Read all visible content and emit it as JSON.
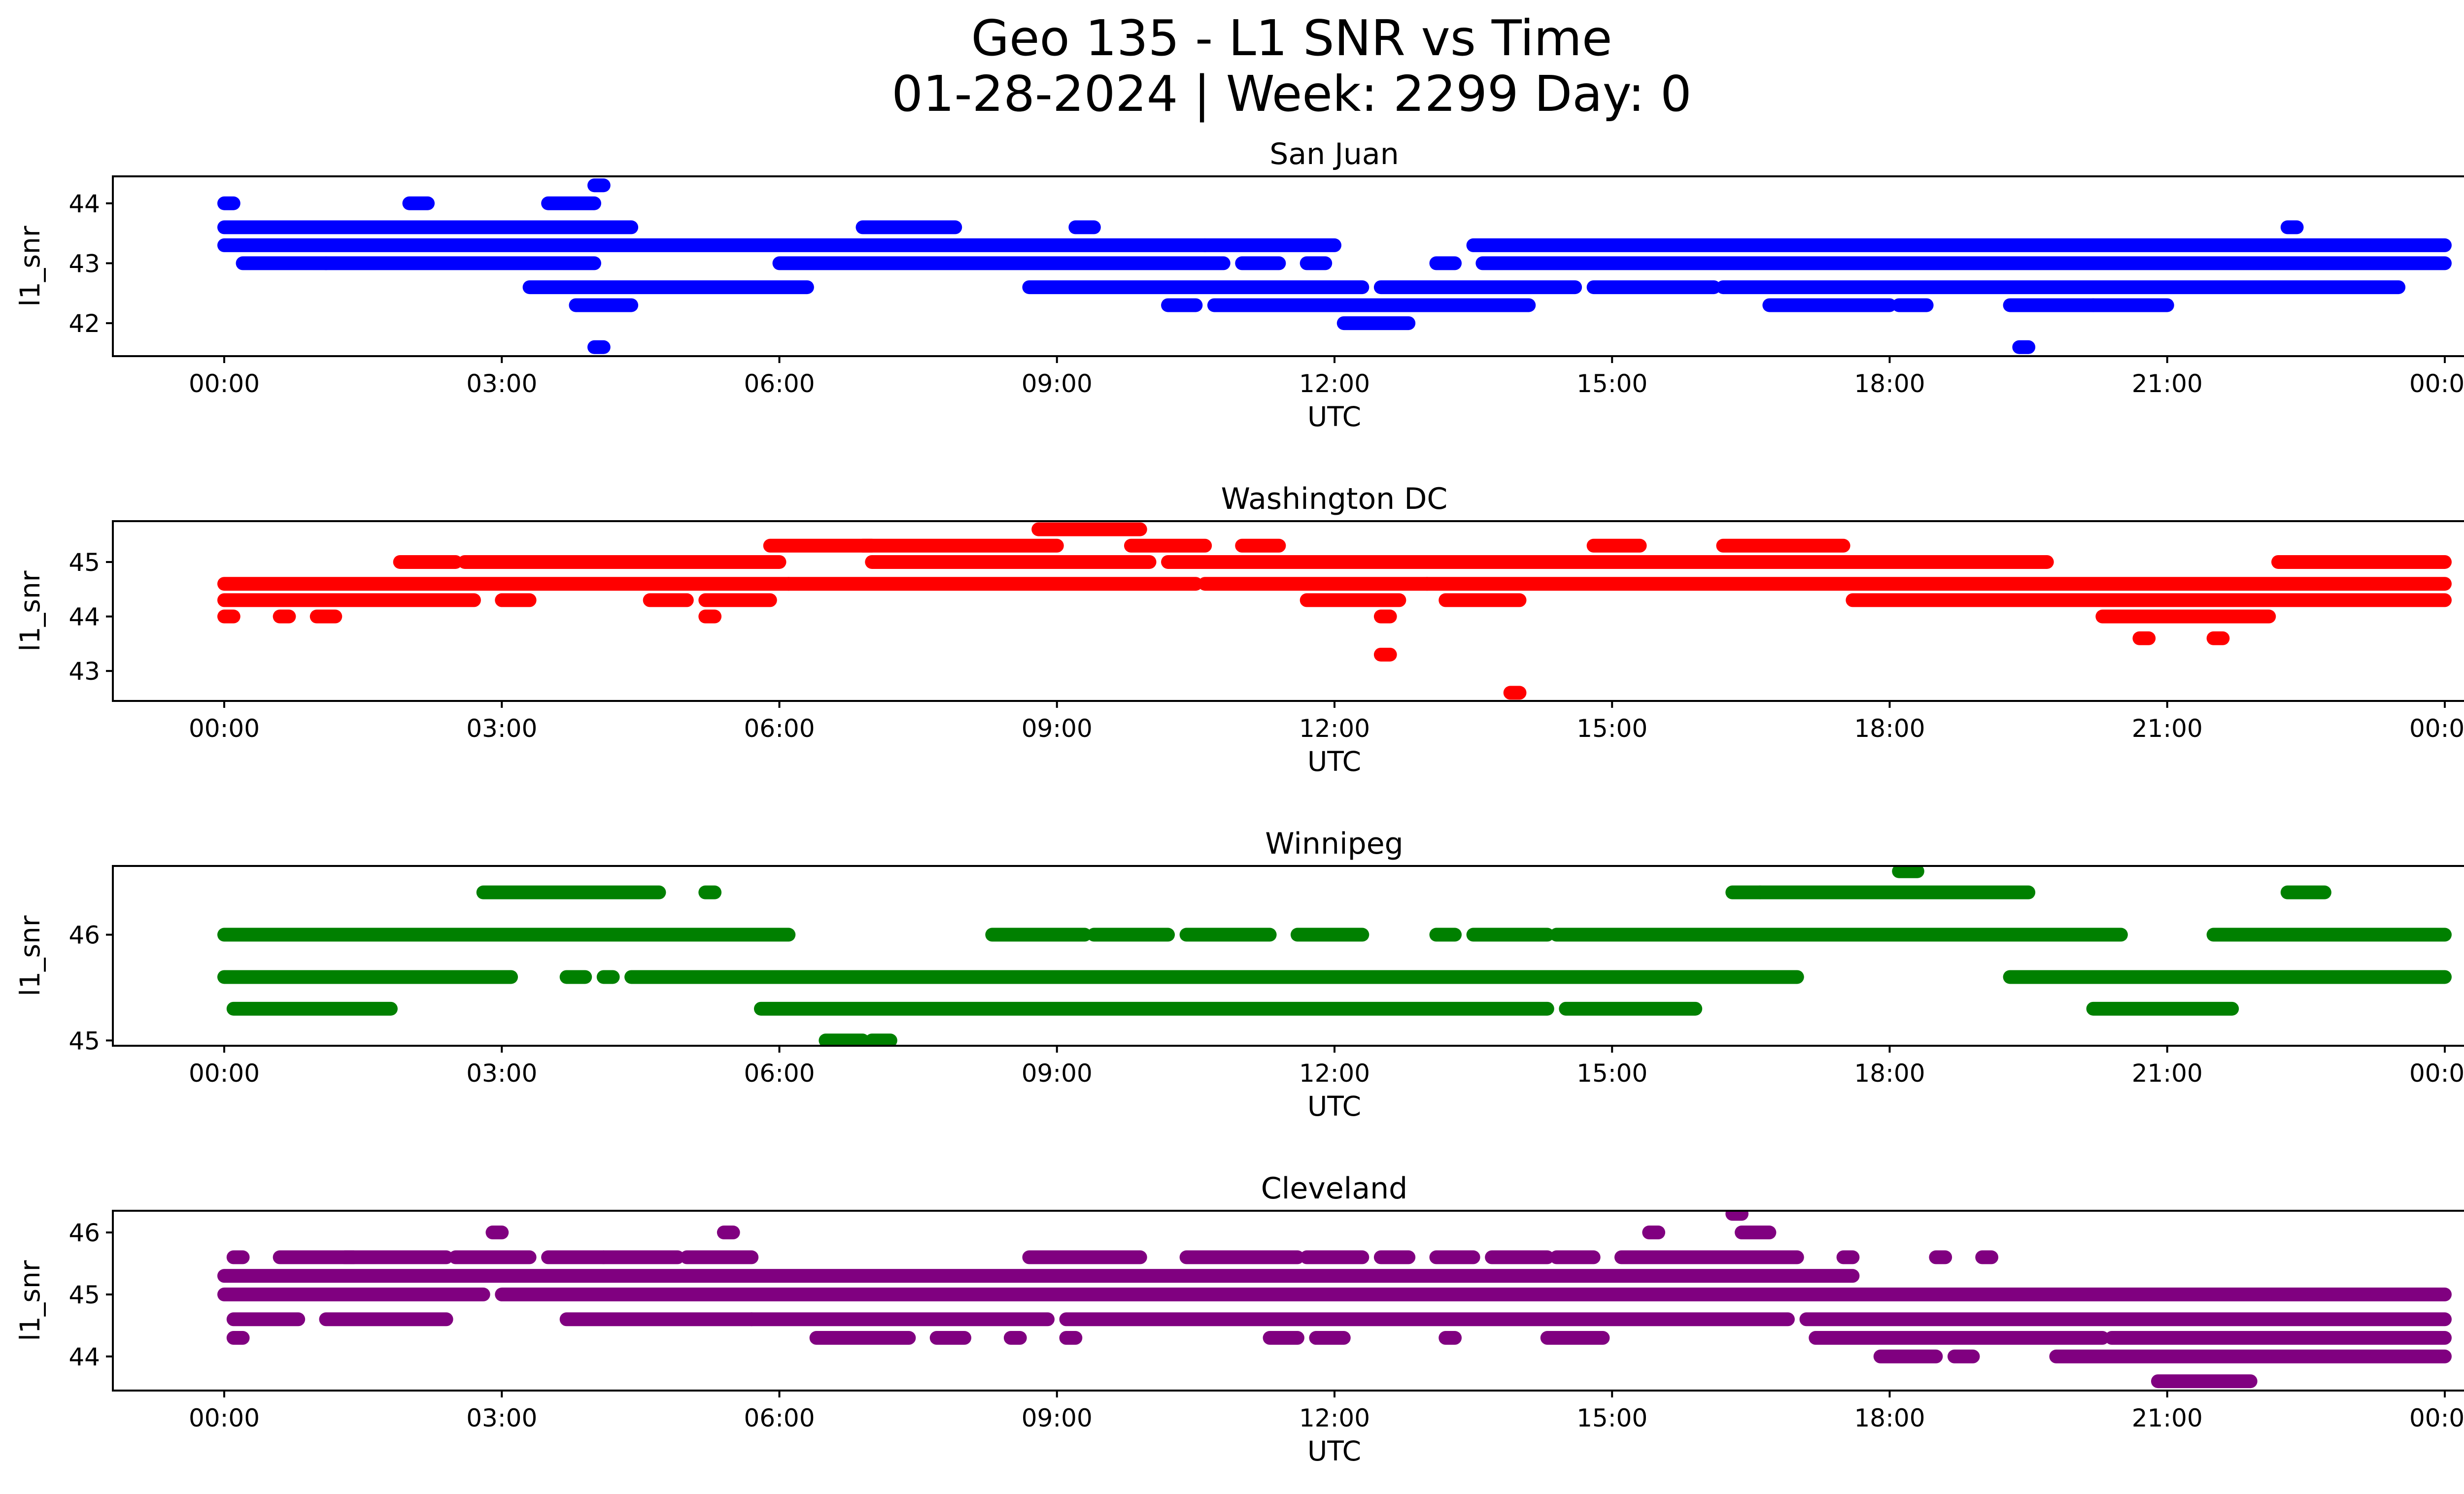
{
  "title_line1": "Geo 135 - L1 SNR vs Time",
  "title_line2": "01-28-2024 | Week: 2299 Day: 0",
  "chart_data": [
    {
      "type": "scatter",
      "title": "San Juan",
      "xlabel": "UTC",
      "ylabel": "l1_snr",
      "color": "#0000ff",
      "xlim": [
        0,
        24
      ],
      "ylim": [
        41.45,
        44.45
      ],
      "yticks": [
        42,
        43,
        44
      ],
      "xticks": [
        "00:00",
        "03:00",
        "06:00",
        "09:00",
        "12:00",
        "15:00",
        "18:00",
        "21:00",
        "00:00"
      ],
      "series": [
        {
          "values": [
            {
              "y": 43.3,
              "x": [
                [
                  0,
                  10.6
                ],
                [
                  10.6,
                  12.0
                ],
                [
                  13.5,
                  24
                ]
              ]
            },
            {
              "y": 43.6,
              "x": [
                [
                  0,
                  4.4
                ],
                [
                  6.9,
                  7.9
                ],
                [
                  9.2,
                  9.4
                ],
                [
                  22.3,
                  22.4
                ]
              ]
            },
            {
              "y": 43.0,
              "x": [
                [
                  0.2,
                  1.1
                ],
                [
                  1.1,
                  4.0
                ],
                [
                  6.0,
                  10.8
                ],
                [
                  11.0,
                  11.4
                ],
                [
                  11.7,
                  11.9
                ],
                [
                  13.1,
                  13.3
                ],
                [
                  13.6,
                  24
                ]
              ]
            },
            {
              "y": 42.6,
              "x": [
                [
                  3.3,
                  6.3
                ],
                [
                  8.7,
                  12.3
                ],
                [
                  12.5,
                  14.6
                ],
                [
                  14.8,
                  16.1
                ],
                [
                  16.2,
                  23.5
                ]
              ]
            },
            {
              "y": 42.3,
              "x": [
                [
                  3.8,
                  4.4
                ],
                [
                  10.2,
                  10.5
                ],
                [
                  10.7,
                  14.1
                ],
                [
                  16.7,
                  18.0
                ],
                [
                  18.1,
                  18.4
                ],
                [
                  19.3,
                  20.2
                ],
                [
                  20.2,
                  21.0
                ]
              ]
            },
            {
              "y": 42.0,
              "x": [
                [
                  12.1,
                  12.8
                ]
              ]
            },
            {
              "y": 44.0,
              "x": [
                [
                  0,
                  0.1
                ],
                [
                  2.0,
                  2.2
                ],
                [
                  3.5,
                  4.0
                ]
              ]
            },
            {
              "y": 44.3,
              "x": [
                [
                  4.0,
                  4.1
                ]
              ]
            },
            {
              "y": 41.6,
              "x": [
                [
                  4.0,
                  4.1
                ],
                [
                  19.4,
                  19.5
                ]
              ]
            }
          ]
        }
      ]
    },
    {
      "type": "scatter",
      "title": "Washington DC",
      "xlabel": "UTC",
      "ylabel": "l1_snr",
      "color": "#ff0000",
      "xlim": [
        0,
        24
      ],
      "ylim": [
        42.45,
        45.75
      ],
      "yticks": [
        43,
        44,
        45
      ],
      "xticks": [
        "00:00",
        "03:00",
        "06:00",
        "09:00",
        "12:00",
        "15:00",
        "18:00",
        "21:00",
        "00:00"
      ],
      "series": [
        {
          "values": [
            {
              "y": 44.6,
              "x": [
                [
                  0,
                  6.1
                ],
                [
                  6.1,
                  10.5
                ],
                [
                  10.6,
                  13.0
                ],
                [
                  13.0,
                  24
                ]
              ]
            },
            {
              "y": 44.3,
              "x": [
                [
                  0,
                  2.7
                ],
                [
                  3.0,
                  3.3
                ],
                [
                  4.6,
                  5.0
                ],
                [
                  5.2,
                  5.9
                ],
                [
                  11.7,
                  12.7
                ],
                [
                  13.2,
                  14.0
                ],
                [
                  17.6,
                  24
                ]
              ]
            },
            {
              "y": 45.0,
              "x": [
                [
                  1.9,
                  2.5
                ],
                [
                  2.6,
                  6.0
                ],
                [
                  7.0,
                  10.0
                ],
                [
                  10.2,
                  19.7
                ],
                [
                  22.2,
                  24
                ]
              ]
            },
            {
              "y": 45.3,
              "x": [
                [
                  5.9,
                  7.0
                ],
                [
                  6.9,
                  9.0
                ],
                [
                  9.8,
                  10.6
                ],
                [
                  11.0,
                  11.4
                ],
                [
                  14.8,
                  15.3
                ],
                [
                  16.2,
                  17.5
                ]
              ]
            },
            {
              "y": 45.6,
              "x": [
                [
                  8.8,
                  9.9
                ]
              ]
            },
            {
              "y": 44.0,
              "x": [
                [
                  0,
                  0.1
                ],
                [
                  0.6,
                  0.7
                ],
                [
                  1.0,
                  1.2
                ],
                [
                  5.2,
                  5.3
                ],
                [
                  12.5,
                  12.6
                ],
                [
                  20.3,
                  22.1
                ]
              ]
            },
            {
              "y": 43.6,
              "x": [
                [
                  20.7,
                  20.8
                ],
                [
                  21.5,
                  21.6
                ]
              ]
            },
            {
              "y": 43.3,
              "x": [
                [
                  12.5,
                  12.6
                ]
              ]
            },
            {
              "y": 42.6,
              "x": [
                [
                  13.9,
                  14.0
                ]
              ]
            }
          ]
        }
      ]
    },
    {
      "type": "scatter",
      "title": "Winnipeg",
      "xlabel": "UTC",
      "ylabel": "l1_snr",
      "color": "#008000",
      "xlim": [
        0,
        24
      ],
      "ylim": [
        44.95,
        46.65
      ],
      "yticks": [
        45,
        46
      ],
      "xticks": [
        "00:00",
        "03:00",
        "06:00",
        "09:00",
        "12:00",
        "15:00",
        "18:00",
        "21:00",
        "00:00"
      ],
      "series": [
        {
          "values": [
            {
              "y": 46.0,
              "x": [
                [
                  0,
                  6.1
                ],
                [
                  8.3,
                  9.3
                ],
                [
                  9.4,
                  10.2
                ],
                [
                  10.4,
                  11.3
                ],
                [
                  11.6,
                  12.3
                ],
                [
                  13.1,
                  13.3
                ],
                [
                  13.5,
                  14.3
                ],
                [
                  14.4,
                  15.2
                ],
                [
                  15.2,
                  20.5
                ],
                [
                  21.5,
                  24
                ]
              ]
            },
            {
              "y": 45.6,
              "x": [
                [
                  0,
                  3.1
                ],
                [
                  3.7,
                  3.9
                ],
                [
                  4.1,
                  4.2
                ],
                [
                  4.4,
                  17.0
                ],
                [
                  19.3,
                  24
                ]
              ]
            },
            {
              "y": 45.3,
              "x": [
                [
                  0.1,
                  1.8
                ],
                [
                  5.8,
                  14.3
                ],
                [
                  14.5,
                  15.9
                ],
                [
                  20.2,
                  21.7
                ]
              ]
            },
            {
              "y": 46.4,
              "x": [
                [
                  2.8,
                  4.7
                ],
                [
                  5.2,
                  5.3
                ],
                [
                  16.3,
                  16.6
                ],
                [
                  16.6,
                  19.5
                ],
                [
                  22.3,
                  22.7
                ]
              ]
            },
            {
              "y": 46.6,
              "x": [
                [
                  18.1,
                  18.3
                ]
              ]
            },
            {
              "y": 45.0,
              "x": [
                [
                  6.5,
                  6.9
                ],
                [
                  7.0,
                  7.2
                ]
              ]
            }
          ]
        }
      ]
    },
    {
      "type": "scatter",
      "title": "Cleveland",
      "xlabel": "UTC",
      "ylabel": "l1_snr",
      "color": "#800080",
      "xlim": [
        0,
        24
      ],
      "ylim": [
        43.45,
        46.35
      ],
      "yticks": [
        44,
        45,
        46
      ],
      "xticks": [
        "00:00",
        "03:00",
        "06:00",
        "09:00",
        "12:00",
        "15:00",
        "18:00",
        "21:00",
        "00:00"
      ],
      "series": [
        {
          "values": [
            {
              "y": 45.3,
              "x": [
                [
                  0,
                  17.6
                ]
              ]
            },
            {
              "y": 45.0,
              "x": [
                [
                  0,
                  2.8
                ],
                [
                  3.0,
                  24
                ]
              ]
            },
            {
              "y": 44.6,
              "x": [
                [
                  0.1,
                  0.8
                ],
                [
                  1.1,
                  2.4
                ],
                [
                  3.7,
                  5.7
                ],
                [
                  5.7,
                  8.9
                ],
                [
                  9.1,
                  16.9
                ],
                [
                  17.1,
                  24
                ]
              ]
            },
            {
              "y": 44.3,
              "x": [
                [
                  0.1,
                  0.2
                ],
                [
                  6.4,
                  7.4
                ],
                [
                  7.7,
                  8.0
                ],
                [
                  8.5,
                  8.6
                ],
                [
                  9.1,
                  9.2
                ],
                [
                  11.3,
                  11.6
                ],
                [
                  11.8,
                  12.1
                ],
                [
                  13.2,
                  13.3
                ],
                [
                  14.3,
                  14.9
                ],
                [
                  17.2,
                  20.3
                ],
                [
                  20.4,
                  24
                ]
              ]
            },
            {
              "y": 44.0,
              "x": [
                [
                  17.9,
                  18.5
                ],
                [
                  18.7,
                  18.9
                ],
                [
                  19.8,
                  24
                ]
              ]
            },
            {
              "y": 43.6,
              "x": [
                [
                  20.9,
                  21.9
                ]
              ]
            },
            {
              "y": 45.6,
              "x": [
                [
                  0.1,
                  0.2
                ],
                [
                  0.6,
                  1.4
                ],
                [
                  1.3,
                  2.4
                ],
                [
                  2.5,
                  3.3
                ],
                [
                  3.5,
                  4.1
                ],
                [
                  4.1,
                  4.9
                ],
                [
                  5.0,
                  5.7
                ],
                [
                  8.7,
                  9.9
                ],
                [
                  10.4,
                  11.6
                ],
                [
                  11.7,
                  12.3
                ],
                [
                  12.5,
                  12.8
                ],
                [
                  13.1,
                  13.5
                ],
                [
                  13.7,
                  14.3
                ],
                [
                  14.4,
                  14.8
                ],
                [
                  15.1,
                  17.0
                ],
                [
                  17.5,
                  17.6
                ],
                [
                  18.5,
                  18.6
                ],
                [
                  19.0,
                  19.1
                ]
              ]
            },
            {
              "y": 46.0,
              "x": [
                [
                  2.9,
                  3.0
                ],
                [
                  5.4,
                  5.5
                ],
                [
                  15.4,
                  15.5
                ],
                [
                  16.4,
                  16.7
                ]
              ]
            },
            {
              "y": 46.3,
              "x": [
                [
                  16.3,
                  16.4
                ]
              ]
            }
          ]
        }
      ]
    }
  ]
}
